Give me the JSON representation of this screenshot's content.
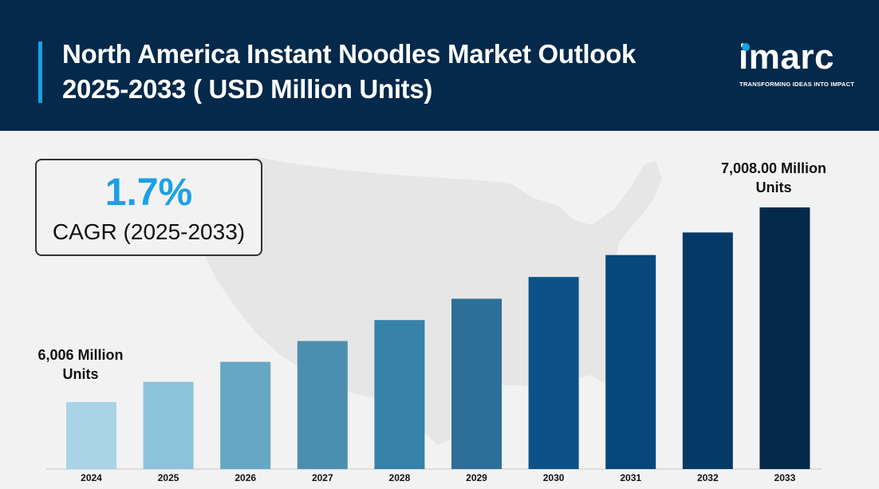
{
  "header": {
    "title_line1": "North America Instant Noodles Market Outlook",
    "title_line2": "2025-2033 ( USD Million Units)"
  },
  "logo": {
    "word": "imarc",
    "tagline": "TRANSFORMING IDEAS INTO IMPACT"
  },
  "cagr": {
    "value": "1.7%",
    "label": "CAGR (2025-2033)"
  },
  "annotations": {
    "first_line1": "6,006 Million",
    "first_line2": "Units",
    "last_line1": "7,008.00 Million",
    "last_line2": "Units"
  },
  "colors": {
    "header_bg": "#04294a",
    "accent": "#1aa0e6",
    "background": "#f2f2f2"
  },
  "chart_data": {
    "type": "bar",
    "title": "North America Instant Noodles Market Outlook 2025-2033 ( USD Million Units)",
    "categories": [
      "2024",
      "2025",
      "2026",
      "2027",
      "2028",
      "2029",
      "2030",
      "2031",
      "2032",
      "2033"
    ],
    "values": [
      6006,
      6110,
      6213,
      6320,
      6428,
      6538,
      6650,
      6763,
      6879,
      7008
    ],
    "bar_colors": [
      "#a8d4e6",
      "#8cc3db",
      "#65a7c4",
      "#4b8fb0",
      "#3782a8",
      "#2d6f99",
      "#0c5289",
      "#08477c",
      "#063a66",
      "#04294a"
    ],
    "xlabel": "",
    "ylabel": "",
    "grid": false,
    "legend": "none"
  }
}
